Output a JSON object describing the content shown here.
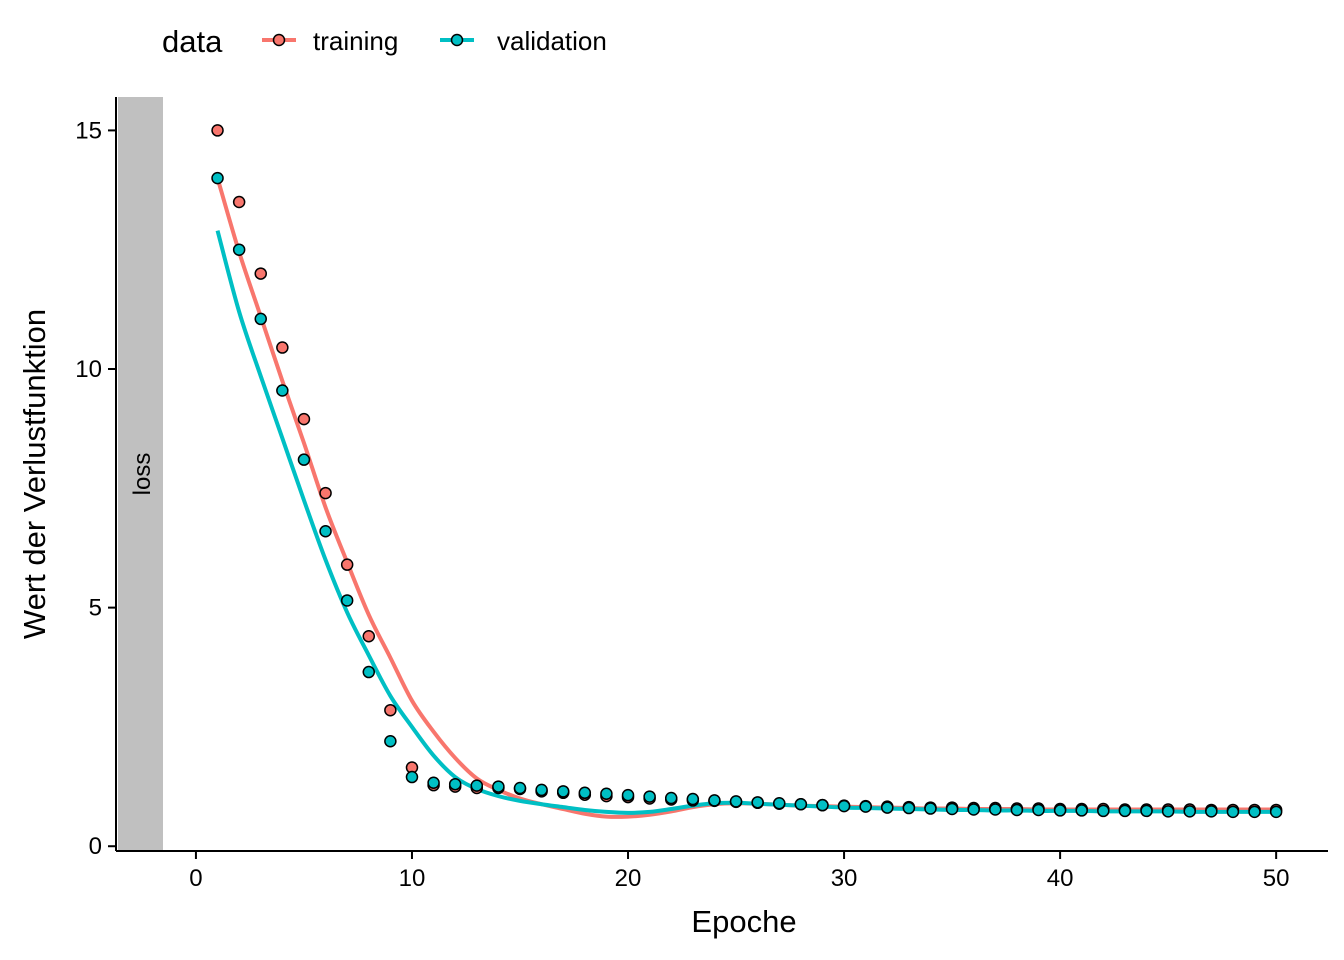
{
  "chart_data": {
    "type": "scatter",
    "xlabel": "Epoche",
    "ylabel": "Wert der Verlustfunktion",
    "facet_label": "loss",
    "xlim": [
      -3.7,
      52.4
    ],
    "ylim": [
      -0.1,
      15.7
    ],
    "xticks": [
      "0",
      "10",
      "20",
      "30",
      "40",
      "50"
    ],
    "yticks": [
      "0",
      "5",
      "10",
      "15"
    ],
    "legend": {
      "title": "data",
      "position": "top-left"
    },
    "grid": false,
    "series": [
      {
        "name": "training",
        "color": "#F8766D",
        "x": [
          1,
          2,
          3,
          4,
          5,
          6,
          7,
          8,
          9,
          10,
          11,
          12,
          13,
          14,
          15,
          16,
          17,
          18,
          19,
          20,
          21,
          22,
          23,
          24,
          25,
          26,
          27,
          28,
          29,
          30,
          31,
          32,
          33,
          34,
          35,
          36,
          37,
          38,
          39,
          40,
          41,
          42,
          43,
          44,
          45,
          46,
          47,
          48,
          49,
          50
        ],
        "y": [
          15.0,
          13.5,
          12.0,
          10.45,
          8.95,
          7.4,
          5.9,
          4.4,
          2.85,
          1.65,
          1.28,
          1.25,
          1.22,
          1.22,
          1.2,
          1.15,
          1.12,
          1.08,
          1.05,
          1.03,
          1.0,
          0.98,
          0.96,
          0.95,
          0.93,
          0.91,
          0.89,
          0.88,
          0.86,
          0.85,
          0.84,
          0.83,
          0.82,
          0.81,
          0.81,
          0.8,
          0.8,
          0.79,
          0.79,
          0.78,
          0.78,
          0.78,
          0.77,
          0.77,
          0.77,
          0.77,
          0.76,
          0.76,
          0.76,
          0.76
        ],
        "smooth_y": [
          14.0,
          12.45,
          11.1,
          9.75,
          8.45,
          7.1,
          5.95,
          4.85,
          3.95,
          3.05,
          2.4,
          1.85,
          1.42,
          1.18,
          1.0,
          0.88,
          0.78,
          0.68,
          0.62,
          0.62,
          0.66,
          0.73,
          0.82,
          0.88,
          0.9,
          0.89,
          0.87,
          0.85,
          0.84,
          0.83,
          0.82,
          0.81,
          0.8,
          0.79,
          0.79,
          0.78,
          0.78,
          0.78,
          0.77,
          0.77,
          0.77,
          0.77,
          0.77,
          0.77,
          0.77,
          0.77,
          0.77,
          0.77,
          0.77,
          0.77
        ]
      },
      {
        "name": "validation",
        "color": "#00BFC4",
        "x": [
          1,
          2,
          3,
          4,
          5,
          6,
          7,
          8,
          9,
          10,
          11,
          12,
          13,
          14,
          15,
          16,
          17,
          18,
          19,
          20,
          21,
          22,
          23,
          24,
          25,
          26,
          27,
          28,
          29,
          30,
          31,
          32,
          33,
          34,
          35,
          36,
          37,
          38,
          39,
          40,
          41,
          42,
          43,
          44,
          45,
          46,
          47,
          48,
          49,
          50
        ],
        "y": [
          14.0,
          12.5,
          11.05,
          9.55,
          8.1,
          6.6,
          5.15,
          3.65,
          2.2,
          1.45,
          1.33,
          1.3,
          1.27,
          1.25,
          1.22,
          1.18,
          1.15,
          1.12,
          1.1,
          1.07,
          1.04,
          1.01,
          0.99,
          0.96,
          0.94,
          0.92,
          0.9,
          0.88,
          0.86,
          0.84,
          0.83,
          0.81,
          0.8,
          0.79,
          0.78,
          0.77,
          0.77,
          0.76,
          0.76,
          0.75,
          0.75,
          0.74,
          0.74,
          0.74,
          0.73,
          0.73,
          0.73,
          0.72,
          0.72,
          0.72
        ],
        "smooth_y": [
          12.9,
          11.2,
          9.85,
          8.55,
          7.25,
          6.0,
          4.9,
          4.0,
          3.15,
          2.5,
          1.9,
          1.45,
          1.2,
          1.05,
          0.95,
          0.88,
          0.82,
          0.76,
          0.72,
          0.7,
          0.72,
          0.78,
          0.85,
          0.9,
          0.91,
          0.89,
          0.87,
          0.85,
          0.83,
          0.81,
          0.8,
          0.79,
          0.78,
          0.77,
          0.76,
          0.76,
          0.75,
          0.75,
          0.74,
          0.74,
          0.74,
          0.73,
          0.73,
          0.73,
          0.73,
          0.72,
          0.72,
          0.72,
          0.72,
          0.72
        ]
      }
    ]
  }
}
